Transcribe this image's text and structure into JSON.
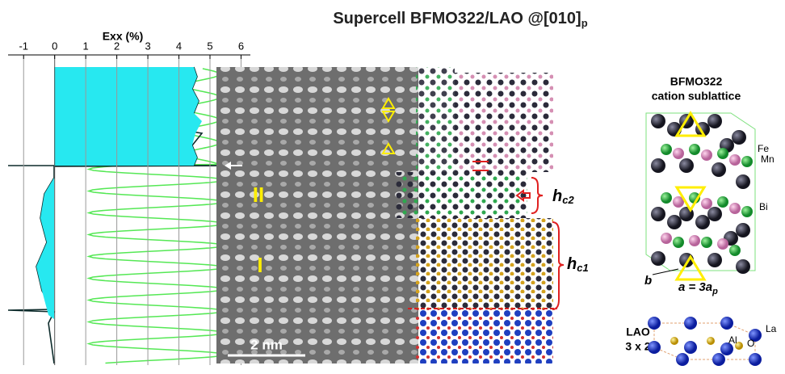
{
  "title": {
    "text": "Supercell BFMO322/LAO @[010]",
    "subscript": "p"
  },
  "strain_profile": {
    "axis_label": "Exx (%)",
    "xlim": [
      -1.5,
      6.3
    ],
    "xticks": [
      -1,
      0,
      1,
      2,
      3,
      4,
      5,
      6
    ],
    "grid": true
  },
  "image": {
    "region_labels": [
      "II",
      "I"
    ],
    "scale_bar": "2 nm",
    "interface_labels": [
      {
        "symbol": "h",
        "subscript": "c2"
      },
      {
        "symbol": "h",
        "subscript": "c1"
      }
    ]
  },
  "bfmo_model": {
    "title": [
      "BFMO322",
      "cation sublattice"
    ],
    "atom_labels": [
      "Fe",
      "Mn",
      "Bi"
    ],
    "axis_b": "b",
    "axis_a": {
      "text": "a = 3a",
      "subscript": "p"
    }
  },
  "lao_model": {
    "title": [
      "LAO",
      "3 x 2"
    ],
    "atom_labels": [
      "La",
      "Al",
      "O"
    ]
  }
}
